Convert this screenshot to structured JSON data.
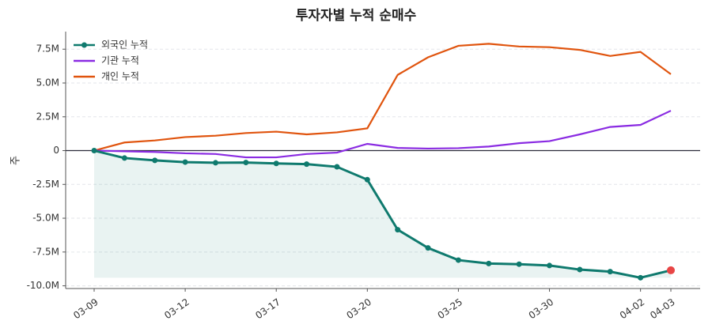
{
  "chart_data": {
    "type": "line",
    "title": "투자자별 누적 순매수",
    "ylabel": "주",
    "categories": [
      "03-09",
      null,
      null,
      "03-12",
      null,
      null,
      "03-17",
      null,
      null,
      "03-20",
      null,
      null,
      "03-25",
      null,
      null,
      "03-30",
      null,
      null,
      "04-02",
      "04-03"
    ],
    "series": [
      {
        "name": "외국인 누적",
        "color": "#0f7a6e",
        "values": [
          0,
          -550000,
          -720000,
          -850000,
          -900000,
          -880000,
          -950000,
          -1000000,
          -1200000,
          -2150000,
          -5850000,
          -7200000,
          -8100000,
          -8350000,
          -8400000,
          -8500000,
          -8800000,
          -8950000,
          -9400000,
          -8850000
        ]
      },
      {
        "name": "기관 누적",
        "color": "#8a2be2",
        "values": [
          0,
          -50000,
          -100000,
          -200000,
          -250000,
          -500000,
          -500000,
          -250000,
          -150000,
          500000,
          200000,
          150000,
          180000,
          300000,
          550000,
          700000,
          1200000,
          1750000,
          1900000,
          2950000
        ]
      },
      {
        "name": "개인 누적",
        "color": "#e0540e",
        "values": [
          0,
          600000,
          750000,
          1000000,
          1100000,
          1300000,
          1400000,
          1200000,
          1350000,
          1650000,
          5600000,
          6900000,
          7750000,
          7900000,
          7700000,
          7650000,
          7450000,
          7000000,
          7300000,
          5650000
        ]
      }
    ],
    "ylim": [
      -10200000,
      8800000
    ],
    "yticks": [
      {
        "value": -10000000,
        "label": "-10.0M"
      },
      {
        "value": -7500000,
        "label": "-7.5M"
      },
      {
        "value": -5000000,
        "label": "-5.0M"
      },
      {
        "value": -2500000,
        "label": "-2.5M"
      },
      0,
      {
        "value": 2500000,
        "label": "2.5M"
      },
      {
        "value": 5000000,
        "label": "5.0M"
      },
      {
        "value": 7500000,
        "label": "7.5M"
      }
    ],
    "grid": true,
    "legend": "upper left"
  }
}
